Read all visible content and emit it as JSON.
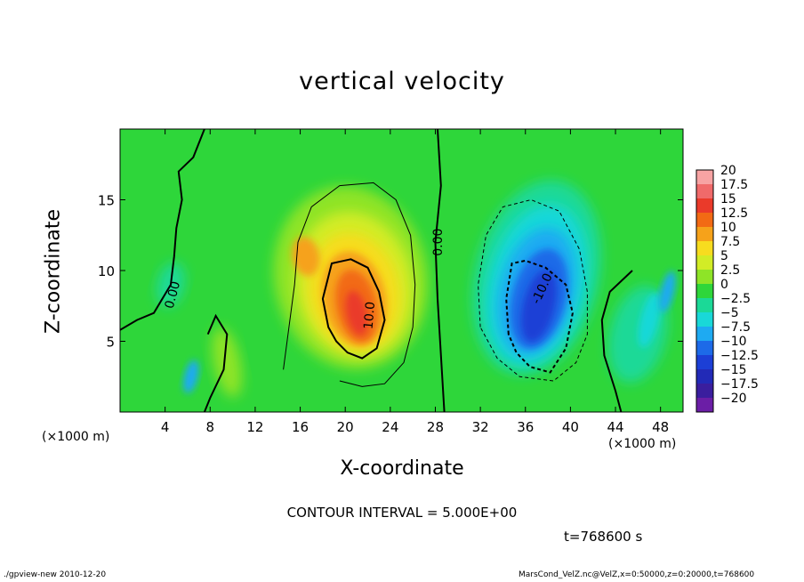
{
  "chart_data": {
    "type": "heatmap",
    "title": "vertical velocity",
    "xlabel": "X-coordinate",
    "ylabel": "Z-coordinate",
    "x_unit": "(×1000 m)",
    "x_ticks": [
      4,
      8,
      12,
      16,
      20,
      24,
      28,
      32,
      36,
      40,
      44,
      48
    ],
    "y_ticks": [
      5,
      10,
      15
    ],
    "xlim": [
      0,
      50
    ],
    "ylim": [
      0,
      20
    ],
    "colorbar": {
      "levels": [
        "20",
        "17.5",
        "15",
        "12.5",
        "10",
        "7.5",
        "5",
        "2.5",
        "0",
        "−2.5",
        "−5",
        "−7.5",
        "−10",
        "−12.5",
        "−15",
        "−17.5",
        "−20"
      ],
      "colors": [
        "#f7a3a3",
        "#f06a6a",
        "#ea3a2a",
        "#f26a14",
        "#f6a21a",
        "#f7dc1f",
        "#d2ec26",
        "#8ee427",
        "#2ed63a",
        "#1bd997",
        "#19d8d8",
        "#1eaaf2",
        "#1d6ae8",
        "#1c3fd6",
        "#222ab7",
        "#3a1e9e",
        "#6b1ea6"
      ]
    },
    "contour_labels": [
      "0.00",
      "0.00",
      "10.0",
      "-10.0"
    ],
    "features": [
      {
        "name": "updraft",
        "x": 21,
        "z": 7,
        "peak": 15
      },
      {
        "name": "downdraft",
        "x": 37,
        "z": 7.5,
        "peak": -15
      }
    ],
    "contour_interval": "CONTOUR INTERVAL = 5.000E+00",
    "time": "t=768600 s"
  },
  "footer": {
    "left": "./gpview-new   2010-12-20",
    "right": "MarsCond_VelZ.nc@VelZ,x=0:50000,z=0:20000,t=768600"
  }
}
